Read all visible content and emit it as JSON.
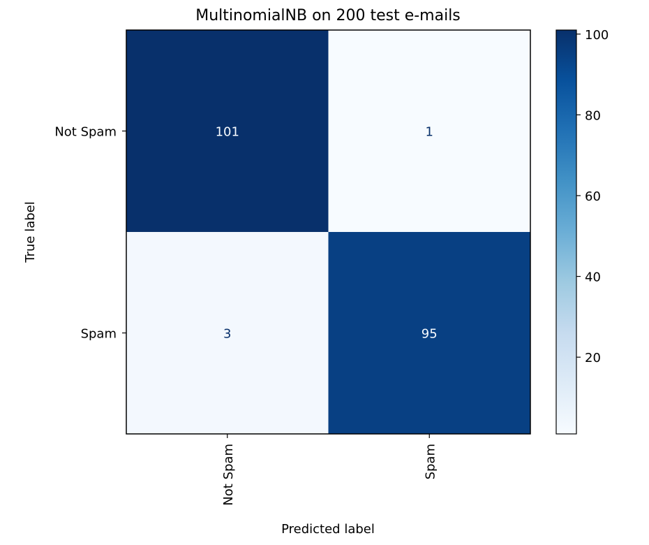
{
  "chart_data": {
    "type": "heatmap",
    "title": "MultinomialNB on 200 test e-mails",
    "xlabel": "Predicted label",
    "ylabel": "True label",
    "row_labels": [
      "Not Spam",
      "Spam"
    ],
    "col_labels": [
      "Not Spam",
      "Spam"
    ],
    "matrix": [
      [
        101,
        1
      ],
      [
        3,
        95
      ]
    ],
    "colormap": "Blues",
    "color_range": [
      1,
      101
    ],
    "colorbar_ticks": [
      20,
      40,
      60,
      80,
      100
    ],
    "grid": false
  }
}
